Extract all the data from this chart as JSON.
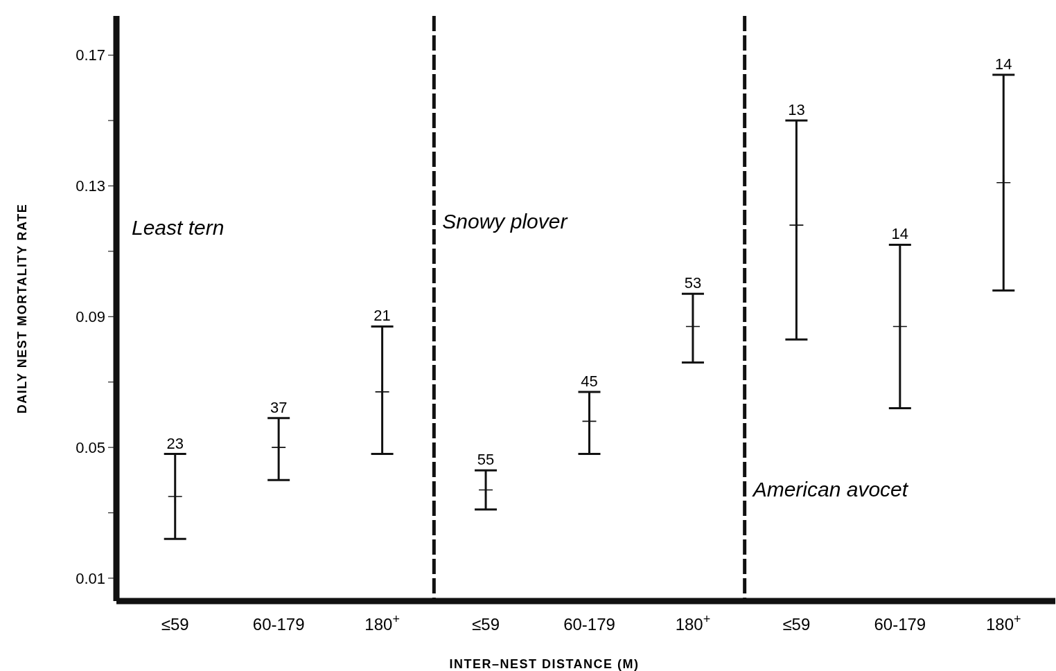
{
  "chart_data": {
    "type": "scatter",
    "xlabel": "INTER–NEST DISTANCE (M)",
    "ylabel": "DAILY NEST MORTALITY RATE",
    "categories": [
      "≤59",
      "60-179",
      "180$^{+}$",
      "≤59",
      "60-179",
      "180$^{+}$",
      "≤59",
      "60-179",
      "180$^{+}$"
    ],
    "values": [
      0.035,
      0.05,
      0.067,
      0.037,
      0.058,
      0.087,
      0.118,
      0.087,
      0.131
    ],
    "errors": [
      [
        0.022,
        0.048
      ],
      [
        0.04,
        0.059
      ],
      [
        0.048,
        0.087
      ],
      [
        0.031,
        0.043
      ],
      [
        0.048,
        0.067
      ],
      [
        0.076,
        0.097
      ],
      [
        0.083,
        0.15
      ],
      [
        0.062,
        0.112
      ],
      [
        0.098,
        0.164
      ]
    ],
    "color": "#111111",
    "marker": "cross",
    "ylim": [
      0.003,
      0.182
    ],
    "yticks": [
      0.01,
      {
        "value": 0.03,
        "label": null
      },
      0.05,
      {
        "value": 0.07,
        "label": null
      },
      0.09,
      {
        "value": 0.11,
        "label": null
      },
      0.13,
      {
        "value": 0.15,
        "label": null
      },
      0.17
    ],
    "annotations": [
      "Least tern",
      "Snowy plover",
      "American avocet",
      "23",
      "37",
      "21",
      "55",
      "45",
      "53",
      "13",
      "14",
      "14"
    ]
  }
}
